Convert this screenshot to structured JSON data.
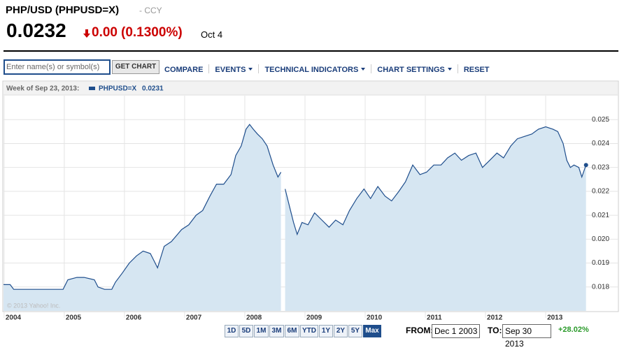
{
  "header": {
    "title": "PHP/USD (PHPUSD=X)",
    "exchange": "- CCY",
    "price": "0.0232",
    "change": "0.00",
    "change_pct": "(0.1300%)",
    "date": "Oct 4"
  },
  "toolbar": {
    "input_placeholder": "Enter name(s) or symbol(s)",
    "button": "GET CHART",
    "menu": [
      "COMPARE",
      "EVENTS",
      "TECHNICAL INDICATORS",
      "CHART SETTINGS",
      "RESET"
    ],
    "menu_dropdown": [
      false,
      true,
      true,
      true,
      false
    ]
  },
  "chart_data": {
    "type": "area",
    "legend_prefix": "Week of Sep 23, 2013:",
    "legend_value": 0.0231,
    "watermark": "© 2013 Yahoo! Inc.",
    "series": [
      {
        "name": "PHPUSD=X",
        "color": "#1f4e8c",
        "fill": "#d6e6f2",
        "values": [
          0.0181,
          0.0181,
          0.0179,
          0.0179,
          0.0179,
          0.0179,
          0.0179,
          0.0183,
          0.0184,
          0.0184,
          0.0183,
          0.018,
          0.0179,
          0.0179,
          0.0182,
          0.0186,
          0.019,
          0.0193,
          0.0195,
          0.0194,
          0.0191,
          0.0188,
          0.0197,
          0.0199,
          0.0204,
          0.0206,
          0.021,
          0.0212,
          0.0218,
          0.0223,
          0.0223,
          0.0227,
          0.0235,
          0.0239,
          0.0246,
          0.0248,
          0.0246,
          0.0244,
          0.0242,
          0.0239,
          0.0231,
          0.0226,
          0.0228,
          null,
          0.0221,
          0.0212,
          0.0207,
          0.0202,
          0.0207,
          0.0206,
          0.0211,
          0.0208,
          0.0205,
          0.0208,
          0.0206,
          0.0212,
          0.0217,
          0.0221,
          0.0217,
          0.0222,
          0.0218,
          0.0216,
          0.022,
          0.0224,
          0.0231,
          0.0227,
          0.0228,
          0.0231,
          0.0231,
          0.0234,
          0.0236,
          0.0233,
          0.0235,
          0.0236,
          0.023,
          0.0233,
          0.0236,
          0.0234,
          0.0239,
          0.0242,
          0.0243,
          0.0244,
          0.0246,
          0.0247,
          0.0246,
          0.0245,
          0.024,
          0.0233,
          0.023,
          0.0231,
          0.023,
          0.0226,
          0.0231
        ]
      }
    ],
    "x": [
      2003.99,
      2004.1,
      2004.16,
      2004.4,
      2004.63,
      2004.86,
      2004.98,
      2005.06,
      2005.21,
      2005.33,
      2005.5,
      2005.56,
      2005.67,
      2005.79,
      2005.85,
      2005.97,
      2006.08,
      2006.2,
      2006.31,
      2006.43,
      2006.49,
      2006.55,
      2006.66,
      2006.78,
      2006.95,
      2007.07,
      2007.19,
      2007.3,
      2007.42,
      2007.53,
      2007.65,
      2007.77,
      2007.85,
      2007.94,
      2008.02,
      2008.08,
      2008.14,
      2008.21,
      2008.29,
      2008.37,
      2008.47,
      2008.55,
      2008.6,
      2008.63,
      2008.67,
      2008.76,
      2008.81,
      2008.87,
      2008.95,
      2009.05,
      2009.16,
      2009.28,
      2009.4,
      2009.51,
      2009.63,
      2009.74,
      2009.86,
      2009.98,
      2010.09,
      2010.21,
      2010.33,
      2010.44,
      2010.56,
      2010.67,
      2010.79,
      2010.91,
      2011.02,
      2011.14,
      2011.26,
      2011.37,
      2011.49,
      2011.6,
      2011.72,
      2011.84,
      2011.95,
      2012.07,
      2012.19,
      2012.3,
      2012.42,
      2012.53,
      2012.65,
      2012.77,
      2012.88,
      2013.0,
      2013.12,
      2013.2,
      2013.29,
      2013.35,
      2013.41,
      2013.47,
      2013.55,
      2013.6,
      2013.67
    ],
    "xlim": [
      2003.99,
      2013.72
    ],
    "xticks": [
      2004,
      2005,
      2006,
      2007,
      2008,
      2009,
      2010,
      2011,
      2012,
      2013
    ],
    "ylim": [
      0.017,
      0.026
    ],
    "yticks": [
      0.018,
      0.019,
      {
        "value": 0.02,
        "label": "0.020"
      },
      0.021,
      0.022,
      0.023,
      0.024,
      0.025
    ],
    "grid": true
  },
  "footer": {
    "ranges": [
      "1D",
      "5D",
      "1M",
      "3M",
      "6M",
      "YTD",
      "1Y",
      "2Y",
      "5Y",
      "Max"
    ],
    "active_range": 9,
    "from_label": "FROM:",
    "from": "Dec 1 2003",
    "to_label": "TO:",
    "to": "Sep 30 2013",
    "change": "+28.02%"
  }
}
